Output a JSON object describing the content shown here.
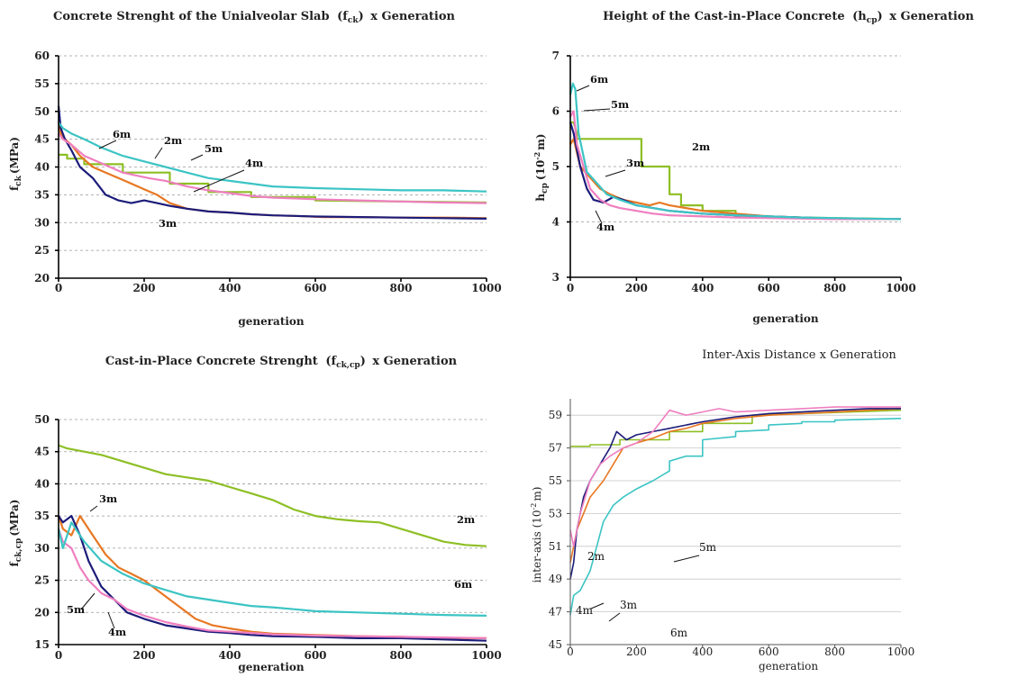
{
  "chart_data": [
    {
      "type": "line",
      "title": "Concrete Strenght of the Unialveolar Slab (f_ck) x Generation",
      "title_main": "Concrete Strenght of the Unialveolar Slab",
      "title_sym": "f",
      "title_sub": "ck",
      "title_tail": "x Generation",
      "xlabel": "generation",
      "ylabel": "f_ck (MPa)",
      "ylabel_base": "f",
      "ylabel_sub": "ck",
      "ylabel_unit": "(MPa)",
      "xlim": [
        0,
        1000
      ],
      "ylim": [
        20,
        60
      ],
      "xticks": [
        "0",
        "200",
        "400",
        "600",
        "800",
        "1000"
      ],
      "yticks": [
        "20",
        "25",
        "30",
        "35",
        "40",
        "45",
        "50",
        "55",
        "60"
      ],
      "grid": true,
      "series": [
        {
          "name": "2m",
          "color": "#8dbf24",
          "x": [
            0,
            20,
            20,
            60,
            60,
            150,
            150,
            260,
            260,
            350,
            350,
            450,
            450,
            600,
            600,
            1000
          ],
          "y": [
            42.2,
            42.2,
            41.5,
            41.5,
            40.5,
            40.5,
            39.0,
            39.0,
            37.0,
            37.0,
            35.5,
            35.5,
            34.6,
            34.6,
            34.0,
            33.6
          ]
        },
        {
          "name": "3m",
          "color": "#e87722",
          "x": [
            0,
            5,
            15,
            30,
            50,
            80,
            110,
            140,
            170,
            200,
            230,
            260,
            280,
            300,
            350,
            400,
            450,
            500,
            550,
            620,
            700,
            800,
            900,
            1000
          ],
          "y": [
            48,
            46,
            45,
            44,
            42,
            40,
            39,
            38,
            37,
            36,
            35,
            33.5,
            33,
            32.5,
            32,
            31.8,
            31.5,
            31.3,
            31.2,
            31.0,
            31.0,
            30.9,
            30.9,
            30.8
          ]
        },
        {
          "name": "4m",
          "color": "#1c1c7a",
          "x": [
            0,
            5,
            15,
            30,
            50,
            80,
            110,
            140,
            170,
            200,
            230,
            260,
            300,
            350,
            400,
            450,
            500,
            550,
            600,
            700,
            800,
            900,
            1000
          ],
          "y": [
            51,
            47,
            45,
            43,
            40,
            38,
            35,
            34,
            33.5,
            34,
            33.5,
            33,
            32.5,
            32,
            31.8,
            31.5,
            31.3,
            31.2,
            31.1,
            31.0,
            30.9,
            30.8,
            30.7
          ]
        },
        {
          "name": "5m",
          "color": "#ef7fc0",
          "x": [
            0,
            10,
            30,
            60,
            90,
            120,
            150,
            180,
            210,
            250,
            300,
            350,
            400,
            450,
            500,
            600,
            700,
            800,
            900,
            1000
          ],
          "y": [
            46,
            45,
            44,
            42,
            41,
            40,
            39,
            38.5,
            38,
            37.5,
            36.5,
            35.8,
            35.3,
            34.8,
            34.5,
            34.2,
            34.0,
            33.8,
            33.6,
            33.5
          ]
        },
        {
          "name": "6m",
          "color": "#3cc4c4",
          "x": [
            0,
            10,
            30,
            60,
            100,
            150,
            200,
            250,
            300,
            350,
            400,
            450,
            500,
            600,
            700,
            800,
            900,
            1000
          ],
          "y": [
            48,
            47,
            46,
            45,
            43.5,
            42,
            41,
            40,
            39,
            38,
            37.5,
            37,
            36.5,
            36.2,
            36.0,
            35.8,
            35.8,
            35.6
          ]
        }
      ],
      "annotations": [
        "6m",
        "2m",
        "5m",
        "4m",
        "3m"
      ]
    },
    {
      "type": "line",
      "title": "Height of the Cast-in-Place Concrete (h_cp) x Generation",
      "title_main": "Height of the Cast-in-Place Concrete",
      "title_sym": "h",
      "title_sub": "cp",
      "title_tail": "x Generation",
      "xlabel": "generation",
      "ylabel": "h_cp (10^-2 m)",
      "ylabel_base": "h",
      "ylabel_sub": "cp",
      "ylabel_unit": "(10",
      "ylabel_exp": "-2",
      "ylabel_unit2": "m)",
      "xlim": [
        0,
        1000
      ],
      "ylim": [
        3,
        7
      ],
      "xticks": [
        "0",
        "200",
        "400",
        "600",
        "800",
        "1000"
      ],
      "yticks": [
        "3",
        "4",
        "5",
        "6",
        "7"
      ],
      "grid": true,
      "series": [
        {
          "name": "2m",
          "color": "#8dbf24",
          "x": [
            0,
            10,
            20,
            20,
            215,
            215,
            300,
            300,
            335,
            335,
            400,
            400,
            500,
            500,
            1000
          ],
          "y": [
            5.8,
            5.8,
            5.6,
            5.5,
            5.5,
            5.0,
            5.0,
            4.5,
            4.5,
            4.3,
            4.3,
            4.2,
            4.2,
            4.1,
            4.05
          ]
        },
        {
          "name": "3m",
          "color": "#e87722",
          "x": [
            0,
            10,
            30,
            60,
            90,
            120,
            160,
            200,
            240,
            270,
            300,
            400,
            500,
            600,
            700,
            800,
            900,
            1000
          ],
          "y": [
            5.4,
            5.5,
            5.0,
            4.8,
            4.6,
            4.5,
            4.4,
            4.35,
            4.3,
            4.35,
            4.3,
            4.2,
            4.15,
            4.1,
            4.08,
            4.06,
            4.05,
            4.05
          ]
        },
        {
          "name": "4m",
          "color": "#1c1c7a",
          "x": [
            0,
            10,
            30,
            50,
            70,
            100,
            130,
            160,
            200,
            250,
            300,
            400,
            500,
            600,
            700,
            800,
            900,
            1000
          ],
          "y": [
            5.8,
            5.6,
            5.0,
            4.6,
            4.4,
            4.35,
            4.45,
            4.4,
            4.3,
            4.25,
            4.2,
            4.15,
            4.12,
            4.1,
            4.08,
            4.06,
            4.05,
            4.05
          ]
        },
        {
          "name": "5m",
          "color": "#ef7fc0",
          "x": [
            0,
            10,
            20,
            40,
            60,
            90,
            120,
            150,
            200,
            250,
            300,
            400,
            500,
            600,
            700,
            800,
            900,
            1000
          ],
          "y": [
            5.9,
            6.0,
            5.4,
            5.0,
            4.6,
            4.4,
            4.3,
            4.25,
            4.2,
            4.15,
            4.12,
            4.1,
            4.08,
            4.07,
            4.06,
            4.05,
            4.05,
            4.05
          ]
        },
        {
          "name": "6m",
          "color": "#3cc4c4",
          "x": [
            0,
            8,
            15,
            25,
            50,
            80,
            110,
            150,
            200,
            250,
            300,
            400,
            500,
            600,
            700,
            800,
            900,
            1000
          ],
          "y": [
            6.3,
            6.5,
            6.4,
            5.6,
            4.9,
            4.7,
            4.5,
            4.4,
            4.3,
            4.25,
            4.2,
            4.15,
            4.12,
            4.1,
            4.08,
            4.07,
            4.06,
            4.05
          ]
        }
      ],
      "annotations": [
        "6m",
        "5m",
        "2m",
        "3m",
        "4m"
      ]
    },
    {
      "type": "line",
      "title": "Cast-in-Place Concrete Strenght (f_ck,cp) x Generation",
      "title_main": "Cast-in-Place Concrete Strenght",
      "title_sym": "f",
      "title_sub": "ck,cp",
      "title_tail": "x Generation",
      "xlabel": "generation",
      "ylabel": "f_ck,cp (MPa)",
      "ylabel_base": "f",
      "ylabel_sub": "ck,cp",
      "ylabel_unit": "(MPa)",
      "xlim": [
        0,
        1000
      ],
      "ylim": [
        15,
        50
      ],
      "xticks": [
        "0",
        "200",
        "400",
        "600",
        "800",
        "1000"
      ],
      "yticks": [
        "15",
        "20",
        "25",
        "30",
        "35",
        "40",
        "45",
        "50"
      ],
      "grid": true,
      "series": [
        {
          "name": "2m",
          "color": "#8dbf24",
          "x": [
            0,
            20,
            60,
            100,
            150,
            200,
            250,
            300,
            350,
            400,
            450,
            500,
            550,
            600,
            650,
            700,
            750,
            800,
            850,
            900,
            950,
            1000
          ],
          "y": [
            46,
            45.5,
            45,
            44.5,
            43.5,
            42.5,
            41.5,
            41,
            40.5,
            39.5,
            38.5,
            37.5,
            36,
            35,
            34.5,
            34.2,
            34,
            33,
            32,
            31,
            30.5,
            30.3
          ]
        },
        {
          "name": "3m",
          "color": "#e87722",
          "x": [
            0,
            10,
            30,
            50,
            80,
            110,
            140,
            170,
            200,
            240,
            280,
            320,
            360,
            400,
            450,
            500,
            600,
            700,
            800,
            900,
            1000
          ],
          "y": [
            35,
            33,
            32,
            35,
            32,
            29,
            27,
            26,
            25,
            23,
            21,
            19,
            18,
            17.5,
            17,
            16.7,
            16.5,
            16.3,
            16.2,
            16.0,
            16.0
          ]
        },
        {
          "name": "4m",
          "color": "#1c1c7a",
          "x": [
            0,
            10,
            30,
            50,
            70,
            100,
            130,
            160,
            200,
            250,
            300,
            350,
            400,
            450,
            500,
            600,
            700,
            800,
            900,
            1000
          ],
          "y": [
            35,
            34,
            35,
            32,
            28,
            24,
            22,
            20,
            19,
            18,
            17.5,
            17,
            16.8,
            16.5,
            16.3,
            16.2,
            16.0,
            16.0,
            15.8,
            15.6
          ]
        },
        {
          "name": "5m",
          "color": "#ef7fc0",
          "x": [
            0,
            10,
            30,
            50,
            70,
            100,
            130,
            160,
            200,
            250,
            300,
            350,
            400,
            450,
            500,
            600,
            700,
            800,
            900,
            1000
          ],
          "y": [
            33,
            31,
            30,
            27,
            25,
            23,
            22,
            20.5,
            19.5,
            18.5,
            17.8,
            17.2,
            17,
            16.8,
            16.6,
            16.4,
            16.3,
            16.2,
            16.1,
            16.0
          ]
        },
        {
          "name": "6m",
          "color": "#3cc4c4",
          "x": [
            0,
            10,
            30,
            60,
            100,
            150,
            200,
            250,
            300,
            350,
            400,
            450,
            500,
            550,
            600,
            700,
            800,
            900,
            1000
          ],
          "y": [
            33,
            30,
            34,
            31,
            28,
            26,
            24.5,
            23.5,
            22.5,
            22,
            21.5,
            21,
            20.8,
            20.5,
            20.2,
            20.0,
            19.8,
            19.6,
            19.5
          ]
        }
      ],
      "annotations": [
        "3m",
        "2m",
        "6m",
        "5m",
        "4m"
      ]
    },
    {
      "type": "line",
      "title": "Inter-Axis Distance x Generation",
      "xlabel": "generation",
      "ylabel": "inter-axis (10^-2 m)",
      "ylabel_base": "inter-axis (10",
      "ylabel_exp": "-2",
      "ylabel_unit2": "m)",
      "xlim": [
        0,
        1000
      ],
      "ylim": [
        45,
        60
      ],
      "xticks": [
        "0",
        "200",
        "400",
        "600",
        "800",
        "1000"
      ],
      "yticks": [
        "45",
        "47",
        "49",
        "51",
        "53",
        "55",
        "57",
        "59"
      ],
      "grid": true,
      "series": [
        {
          "name": "2m",
          "color": "#8dbf24",
          "x": [
            0,
            60,
            60,
            150,
            150,
            300,
            300,
            400,
            400,
            550,
            550,
            1000
          ],
          "y": [
            57.1,
            57.1,
            57.2,
            57.2,
            57.5,
            57.5,
            58.0,
            58.0,
            58.5,
            58.5,
            59.0,
            59.3
          ]
        },
        {
          "name": "3m",
          "color": "#e87722",
          "x": [
            0,
            10,
            20,
            40,
            60,
            80,
            100,
            130,
            160,
            200,
            250,
            300,
            350,
            400,
            500,
            600,
            700,
            800,
            900,
            1000
          ],
          "y": [
            50,
            51,
            52,
            53,
            54,
            54.5,
            55,
            56,
            57,
            57.3,
            57.6,
            58,
            58.2,
            58.5,
            58.8,
            59,
            59.1,
            59.2,
            59.3,
            59.4
          ]
        },
        {
          "name": "4m",
          "color": "#1c1c7a",
          "x": [
            0,
            10,
            20,
            40,
            60,
            90,
            120,
            140,
            170,
            200,
            250,
            300,
            350,
            400,
            500,
            600,
            700,
            800,
            900,
            1000
          ],
          "y": [
            49,
            50,
            52,
            54,
            55,
            56,
            57,
            58,
            57.5,
            57.8,
            58,
            58.2,
            58.4,
            58.6,
            58.9,
            59.1,
            59.2,
            59.3,
            59.4,
            59.4
          ]
        },
        {
          "name": "5m",
          "color": "#ef7fc0",
          "x": [
            0,
            10,
            30,
            60,
            90,
            120,
            160,
            200,
            250,
            300,
            350,
            400,
            450,
            500,
            600,
            700,
            800,
            900,
            1000
          ],
          "y": [
            52,
            51,
            53,
            55,
            56,
            56.5,
            57,
            57.3,
            58,
            59.3,
            59.0,
            59.2,
            59.4,
            59.2,
            59.3,
            59.4,
            59.5,
            59.5,
            59.5
          ]
        },
        {
          "name": "6m",
          "color": "#3cc4c4",
          "x": [
            0,
            10,
            30,
            60,
            80,
            100,
            130,
            160,
            200,
            250,
            300,
            300,
            350,
            400,
            400,
            500,
            500,
            600,
            600,
            700,
            700,
            800,
            800,
            1000
          ],
          "y": [
            46.8,
            48,
            48.3,
            49.5,
            51,
            52.5,
            53.5,
            54,
            54.5,
            55,
            55.6,
            56.2,
            56.5,
            56.5,
            57.5,
            57.7,
            58.0,
            58.1,
            58.4,
            58.5,
            58.6,
            58.6,
            58.7,
            58.8
          ]
        }
      ],
      "annotations": [
        "5m",
        "2m",
        "4m",
        "3m",
        "6m"
      ]
    }
  ]
}
